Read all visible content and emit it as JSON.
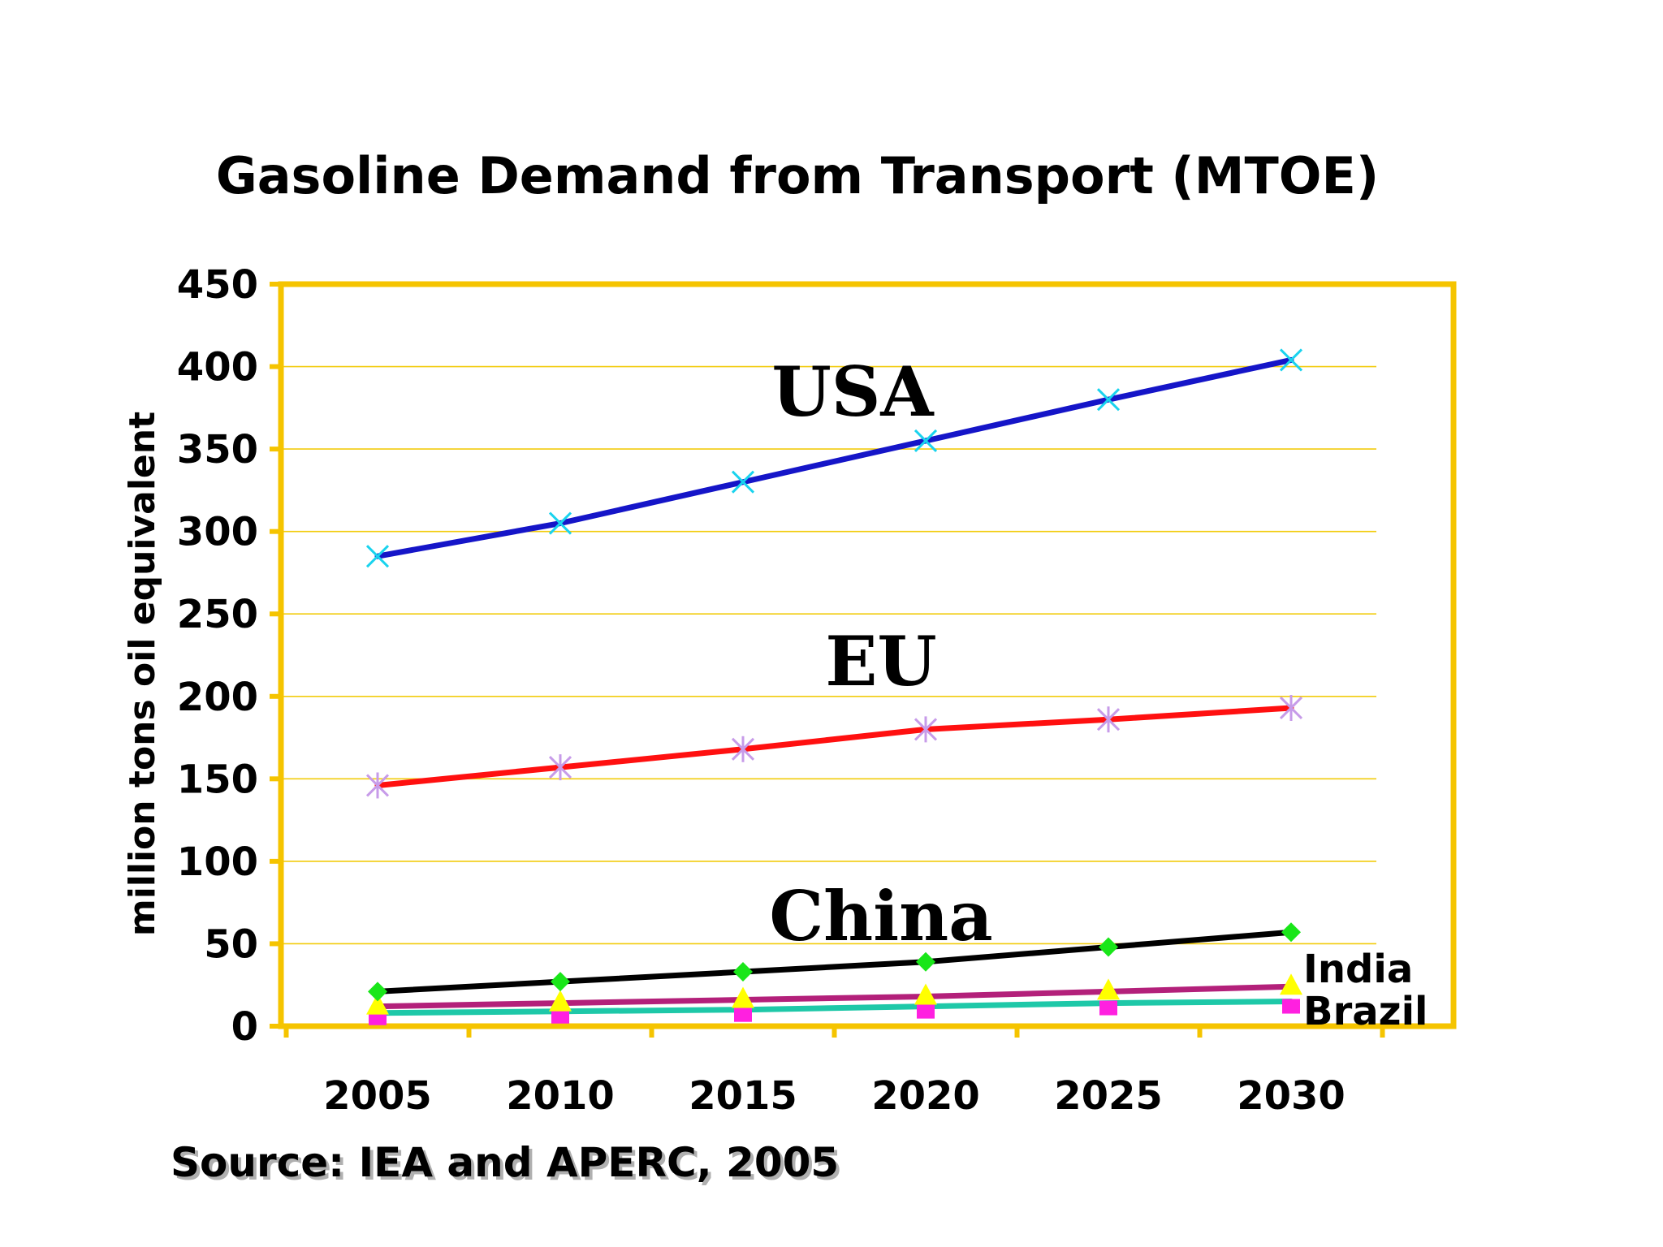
{
  "chart_data": {
    "type": "line",
    "title": "Gasoline Demand from Transport (MTOE)",
    "ylabel": "million tons oil equivalent",
    "xlabel": "",
    "x": [
      2005,
      2010,
      2015,
      2020,
      2025,
      2030
    ],
    "x_tick_labels": [
      "2005",
      "2010",
      "2015",
      "2020",
      "2025",
      "2030"
    ],
    "ylim": [
      0,
      450
    ],
    "y_ticks": [
      0,
      50,
      100,
      150,
      200,
      250,
      300,
      350,
      400,
      450
    ],
    "y_tick_labels": [
      "0",
      "50",
      "100",
      "150",
      "200",
      "250",
      "300",
      "350",
      "400",
      "450"
    ],
    "grid": true,
    "series": [
      {
        "name": "USA",
        "values": [
          285,
          305,
          330,
          355,
          380,
          404
        ],
        "line_color": "#1515c8",
        "marker": "x",
        "marker_color": "#19d3ee"
      },
      {
        "name": "EU",
        "values": [
          146,
          157,
          168,
          180,
          186,
          193
        ],
        "line_color": "#ff1010",
        "marker": "asterisk",
        "marker_color": "#c79be9"
      },
      {
        "name": "China",
        "values": [
          21,
          27,
          33,
          39,
          48,
          57
        ],
        "line_color": "#000000",
        "marker": "diamond",
        "marker_color": "#19e619"
      },
      {
        "name": "India",
        "values": [
          12,
          14,
          16,
          18,
          21,
          24
        ],
        "line_color": "#b3207a",
        "marker": "triangle",
        "marker_color": "#ffff00"
      },
      {
        "name": "Brazil",
        "values": [
          8,
          9,
          10,
          12,
          14,
          15
        ],
        "line_color": "#1ec8a8",
        "marker": "square",
        "marker_color": "#ff20e0"
      }
    ],
    "source": "Source: IEA and APERC, 2005"
  }
}
